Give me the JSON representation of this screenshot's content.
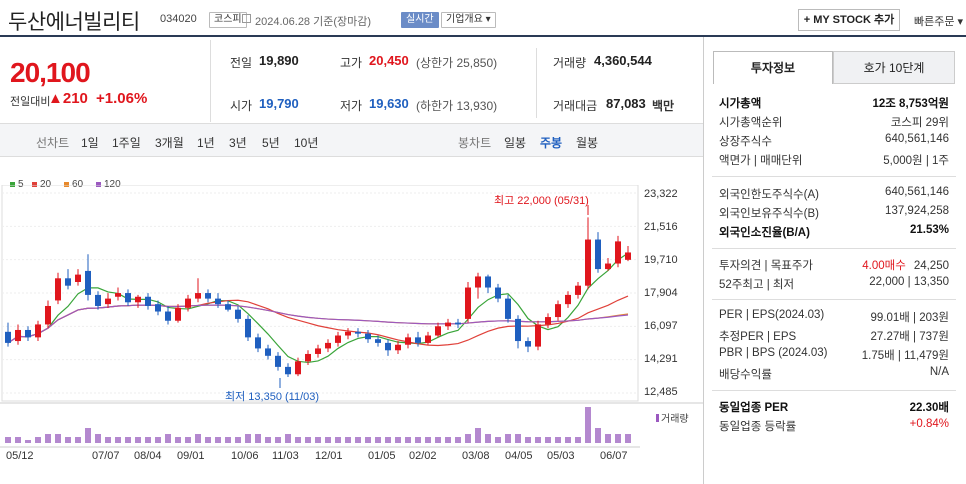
{
  "header": {
    "name": "두산에너빌리티",
    "code": "034020",
    "market": "코스피",
    "date": "2024.06.28 기준(장마감)",
    "realtime": "실시간",
    "company_info": "기업개요 ▾",
    "mystock": "+ MY STOCK 추가",
    "quick_order": "빠른주문 ▾"
  },
  "quote": {
    "price": "20,100",
    "change_label": "전일대비",
    "change": "▲210",
    "change_pct": "+1.06%",
    "prev_label": "전일",
    "prev": "19,890",
    "high_label": "고가",
    "high": "20,450",
    "upper_limit": "(상한가 25,850)",
    "volume_label": "거래량",
    "volume": "4,360,544",
    "open_label": "시가",
    "open": "19,790",
    "low_label": "저가",
    "low": "19,630",
    "lower_limit": "(하한가 13,930)",
    "amount_label": "거래대금",
    "amount": "87,083",
    "amount_unit": "백만"
  },
  "toolbar": {
    "line_chart": "선차트",
    "periods": [
      "1일",
      "1주일",
      "3개월",
      "1년",
      "3년",
      "5년",
      "10년"
    ],
    "candle_chart": "봉차트",
    "candle_periods": [
      "일봉",
      "주봉",
      "월봉"
    ]
  },
  "legend": [
    {
      "label": "5",
      "color": "#3aa53a"
    },
    {
      "label": "20",
      "color": "#e0413a"
    },
    {
      "label": "60",
      "color": "#e8892b"
    },
    {
      "label": "120",
      "color": "#9b59c0"
    }
  ],
  "chart_data": {
    "type": "candlestick",
    "y_ticks": [
      "23,322",
      "21,516",
      "19,710",
      "17,904",
      "16,097",
      "14,291",
      "12,485"
    ],
    "ylim": [
      12485,
      23322
    ],
    "x_ticks": [
      "05/12",
      "07/07",
      "08/04",
      "09/01",
      "10/06",
      "11/03",
      "12/01",
      "01/05",
      "02/02",
      "03/08",
      "04/05",
      "05/03",
      "06/07"
    ],
    "high_annotation": "최고 22,000 (05/31)",
    "low_annotation": "최저 13,350 (11/03)",
    "volume_label": "거래량",
    "candles": [
      [
        15800,
        15200,
        16300,
        15000
      ],
      [
        15300,
        15900,
        16200,
        15100
      ],
      [
        15900,
        15500,
        16100,
        15300
      ],
      [
        15500,
        16200,
        16400,
        15300
      ],
      [
        16200,
        17200,
        17500,
        16000
      ],
      [
        17500,
        18700,
        19000,
        17300
      ],
      [
        18700,
        18300,
        19200,
        18100
      ],
      [
        18500,
        18900,
        19200,
        18300
      ],
      [
        19100,
        17800,
        20000,
        17500
      ],
      [
        17800,
        17200,
        18000,
        17000
      ],
      [
        17300,
        17600,
        17900,
        17100
      ],
      [
        17700,
        17900,
        18200,
        17500
      ],
      [
        17900,
        17400,
        18100,
        17200
      ],
      [
        17400,
        17700,
        17800,
        17100
      ],
      [
        17700,
        17200,
        17900,
        17000
      ],
      [
        17300,
        16900,
        17500,
        16700
      ],
      [
        16900,
        16400,
        17200,
        16200
      ],
      [
        16400,
        17100,
        17300,
        16300
      ],
      [
        17100,
        17600,
        17800,
        16900
      ],
      [
        17600,
        17900,
        18700,
        17400
      ],
      [
        17900,
        17600,
        18100,
        17400
      ],
      [
        17600,
        17300,
        17900,
        17100
      ],
      [
        17300,
        17000,
        17500,
        16900
      ],
      [
        17000,
        16500,
        17200,
        16300
      ],
      [
        16500,
        15500,
        16700,
        15300
      ],
      [
        15500,
        14900,
        15700,
        14700
      ],
      [
        14900,
        14500,
        15100,
        14300
      ],
      [
        14500,
        13900,
        14700,
        13700
      ],
      [
        13900,
        13500,
        14100,
        13350
      ],
      [
        13500,
        14200,
        14400,
        13400
      ],
      [
        14200,
        14600,
        14800,
        14000
      ],
      [
        14600,
        14900,
        15100,
        14400
      ],
      [
        14900,
        15200,
        15400,
        14700
      ],
      [
        15200,
        15600,
        15800,
        15000
      ],
      [
        15600,
        15800,
        16000,
        15400
      ],
      [
        15800,
        15700,
        16000,
        15500
      ],
      [
        15700,
        15400,
        15900,
        15200
      ],
      [
        15400,
        15200,
        15600,
        15000
      ],
      [
        15200,
        14800,
        15400,
        14500
      ],
      [
        14800,
        15100,
        15300,
        14600
      ],
      [
        15100,
        15500,
        15700,
        14900
      ],
      [
        15500,
        15200,
        15800,
        15000
      ],
      [
        15200,
        15600,
        15800,
        15100
      ],
      [
        15600,
        16100,
        16300,
        15500
      ],
      [
        16100,
        16300,
        16500,
        15900
      ],
      [
        16300,
        16200,
        16500,
        16000
      ],
      [
        16500,
        18200,
        18500,
        16300
      ],
      [
        18200,
        18800,
        19000,
        17600
      ],
      [
        18800,
        18200,
        18900,
        17900
      ],
      [
        18200,
        17600,
        18400,
        17400
      ],
      [
        17600,
        16500,
        17800,
        16300
      ],
      [
        16500,
        15300,
        16700,
        14900
      ],
      [
        15300,
        15000,
        15500,
        14700
      ],
      [
        15000,
        16200,
        16400,
        14800
      ],
      [
        16200,
        16600,
        16800,
        16000
      ],
      [
        16600,
        17300,
        17500,
        16400
      ],
      [
        17300,
        17800,
        18000,
        17100
      ],
      [
        17800,
        18300,
        18500,
        17600
      ],
      [
        18300,
        20800,
        22000,
        18100
      ],
      [
        20800,
        19200,
        21200,
        19000
      ],
      [
        19200,
        19500,
        19800,
        19100
      ],
      [
        19500,
        20700,
        21000,
        19300
      ],
      [
        19700,
        20100,
        20450,
        19630
      ]
    ],
    "volumes": [
      2,
      2,
      1,
      2,
      3,
      3,
      2,
      2,
      5,
      3,
      2,
      2,
      2,
      2,
      2,
      2,
      3,
      2,
      2,
      3,
      2,
      2,
      2,
      2,
      3,
      3,
      2,
      2,
      3,
      2,
      2,
      2,
      2,
      2,
      2,
      2,
      2,
      2,
      2,
      2,
      2,
      2,
      2,
      2,
      2,
      2,
      3,
      5,
      3,
      2,
      3,
      3,
      2,
      2,
      2,
      2,
      2,
      2,
      12,
      5,
      3,
      3,
      3
    ]
  },
  "right": {
    "tab_active": "투자정보",
    "tab_other": "호가 10단계",
    "rows": [
      {
        "k": "시가총액",
        "v": "12조 8,753억원",
        "bold": true
      },
      {
        "k": "시가총액순위",
        "v": "코스피 29위"
      },
      {
        "k": "상장주식수",
        "v": "640,561,146"
      },
      {
        "k": "액면가 | 매매단위",
        "v": "5,000원 | 1주"
      },
      {
        "k": "외국인한도주식수(A)",
        "v": "640,561,146"
      },
      {
        "k": "외국인보유주식수(B)",
        "v": "137,924,258"
      },
      {
        "k": "외국인소진율(B/A)",
        "v": "21.53%",
        "bold": true
      },
      {
        "k": "투자의견 | 목표주가",
        "v1": "4.00매수",
        "v2": "24,250"
      },
      {
        "k": "52주최고 | 최저",
        "v": "22,000 | 13,350"
      },
      {
        "k": "PER | EPS(2024.03)",
        "v": "99.01배 | 203원"
      },
      {
        "k": "추정PER | EPS",
        "v": "27.27배 | 737원"
      },
      {
        "k": "PBR | BPS (2024.03)",
        "v": "1.75배 | 11,479원"
      },
      {
        "k": "배당수익률",
        "v": "N/A"
      },
      {
        "k": "동일업종 PER",
        "v": "22.30배",
        "bold": true
      },
      {
        "k": "동일업종 등락률",
        "v": "+0.84%",
        "red": true
      }
    ]
  }
}
